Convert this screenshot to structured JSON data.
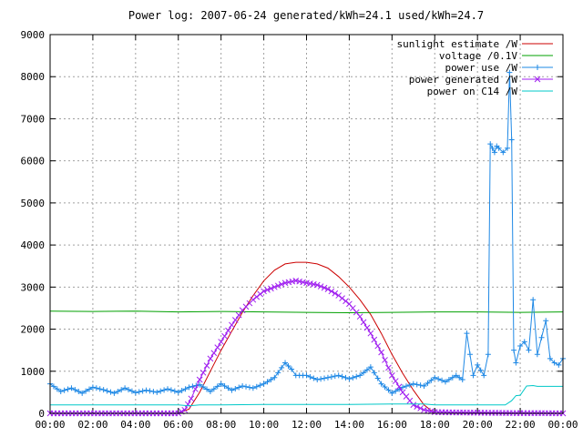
{
  "chart_data": {
    "type": "line",
    "title": "Power log: 2007-06-24 generated/kWh=24.1 used/kWh=24.7",
    "xlabel": "",
    "ylabel": "",
    "xlim": [
      0,
      24
    ],
    "ylim": [
      0,
      9000
    ],
    "grid": true,
    "legend_position": "top-right",
    "x_ticks": [
      "00:00",
      "02:00",
      "04:00",
      "06:00",
      "08:00",
      "10:00",
      "12:00",
      "14:00",
      "16:00",
      "18:00",
      "20:00",
      "22:00",
      "00:00"
    ],
    "y_ticks": [
      "0",
      "1000",
      "2000",
      "3000",
      "4000",
      "5000",
      "6000",
      "7000",
      "8000",
      "9000"
    ],
    "series": [
      {
        "name": "sunlight estimate /W",
        "color": "#cc0000",
        "marker": "none",
        "x": [
          0,
          6.0,
          6.5,
          7.0,
          7.5,
          8.0,
          8.5,
          9.0,
          9.5,
          10.0,
          10.5,
          11.0,
          11.5,
          12.0,
          12.5,
          13.0,
          13.5,
          14.0,
          14.5,
          15.0,
          15.5,
          16.0,
          16.5,
          17.0,
          17.5,
          18.0,
          24
        ],
        "y": [
          0,
          0,
          100,
          500,
          1000,
          1500,
          1950,
          2400,
          2800,
          3150,
          3400,
          3550,
          3590,
          3590,
          3550,
          3450,
          3250,
          3000,
          2700,
          2350,
          1900,
          1400,
          950,
          550,
          200,
          0,
          0
        ]
      },
      {
        "name": "voltage /0.1V",
        "color": "#00a000",
        "marker": "none",
        "x": [
          0,
          2,
          4,
          6,
          8,
          10,
          12,
          14,
          16,
          18,
          20,
          22,
          24
        ],
        "y": [
          2430,
          2420,
          2430,
          2410,
          2420,
          2410,
          2400,
          2390,
          2400,
          2410,
          2410,
          2400,
          2410
        ]
      },
      {
        "name": "power use /W",
        "color": "#1e88e5",
        "marker": "plus",
        "x": [
          0,
          0.5,
          1.0,
          1.5,
          2.0,
          2.5,
          3.0,
          3.5,
          4.0,
          4.5,
          5.0,
          5.5,
          6.0,
          6.5,
          7.0,
          7.5,
          8.0,
          8.5,
          9.0,
          9.5,
          10.0,
          10.5,
          11.0,
          11.3,
          11.5,
          12.0,
          12.5,
          13.0,
          13.5,
          14.0,
          14.5,
          15.0,
          15.5,
          16.0,
          16.5,
          17.0,
          17.5,
          18.0,
          18.5,
          19.0,
          19.3,
          19.5,
          19.8,
          20.0,
          20.3,
          20.5,
          20.6,
          20.7,
          20.8,
          20.9,
          21.0,
          21.2,
          21.4,
          21.5,
          21.6,
          21.7,
          21.8,
          22.0,
          22.2,
          22.4,
          22.6,
          22.8,
          23.0,
          23.2,
          23.4,
          23.6,
          23.8,
          24.0
        ],
        "y": [
          700,
          520,
          600,
          480,
          620,
          560,
          480,
          600,
          490,
          550,
          500,
          580,
          500,
          620,
          680,
          520,
          700,
          550,
          650,
          600,
          700,
          850,
          1200,
          1050,
          900,
          900,
          800,
          850,
          900,
          820,
          900,
          1100,
          700,
          480,
          620,
          700,
          650,
          850,
          750,
          900,
          800,
          1900,
          900,
          1150,
          900,
          1400,
          6400,
          6300,
          6200,
          6350,
          6300,
          6200,
          6300,
          8100,
          6500,
          1500,
          1200,
          1600,
          1700,
          1500,
          2700,
          1400,
          1800,
          2200,
          1300,
          1200,
          1150,
          1300
        ]
      },
      {
        "name": "power generated /W",
        "color": "#a020f0",
        "marker": "x",
        "x": [
          0,
          5.5,
          6.0,
          6.3,
          6.6,
          7.0,
          7.5,
          8.0,
          8.5,
          9.0,
          9.5,
          10.0,
          10.5,
          11.0,
          11.5,
          12.0,
          12.5,
          13.0,
          13.5,
          14.0,
          14.5,
          15.0,
          15.5,
          16.0,
          16.5,
          17.0,
          17.5,
          18.0,
          19.0,
          20.0,
          21.0,
          22.0,
          23.0,
          24.0
        ],
        "y": [
          0,
          0,
          0,
          80,
          350,
          800,
          1300,
          1700,
          2100,
          2450,
          2700,
          2900,
          3000,
          3100,
          3150,
          3100,
          3050,
          2950,
          2800,
          2600,
          2300,
          1900,
          1450,
          900,
          500,
          200,
          80,
          30,
          20,
          15,
          10,
          5,
          5,
          0
        ]
      },
      {
        "name": "power on C14 /W",
        "color": "#00c8c8",
        "marker": "none",
        "x": [
          0,
          6.0,
          6.5,
          7.0,
          8.0,
          10.0,
          12.0,
          14.0,
          16.0,
          17.5,
          18.0,
          20.0,
          21.3,
          21.6,
          21.8,
          22.0,
          22.3,
          22.6,
          22.8,
          24.0
        ],
        "y": [
          200,
          200,
          180,
          200,
          200,
          210,
          210,
          210,
          220,
          220,
          200,
          200,
          200,
          300,
          420,
          430,
          650,
          660,
          640,
          640
        ]
      }
    ]
  }
}
